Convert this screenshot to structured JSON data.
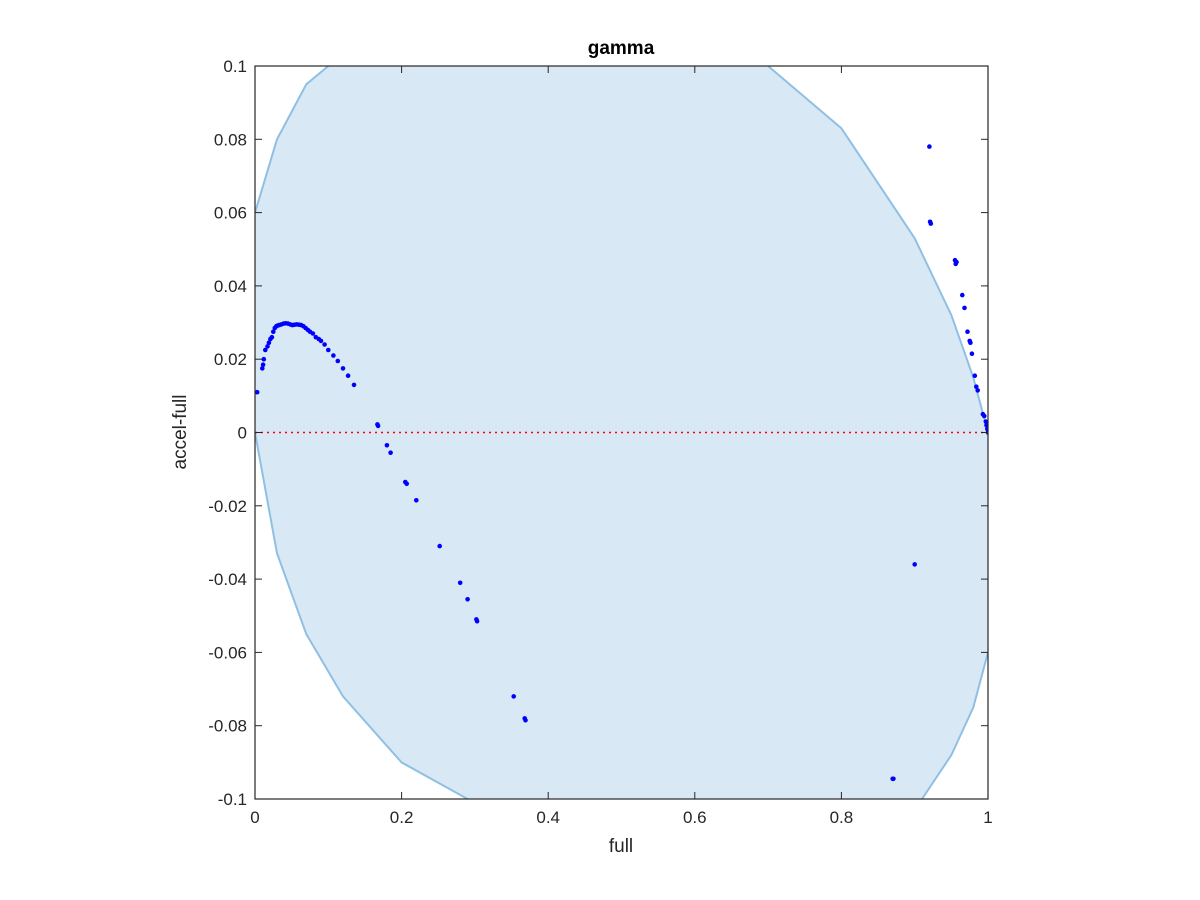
{
  "chart_data": {
    "type": "scatter",
    "title": "gamma",
    "xlabel": "full",
    "ylabel": "accel-full",
    "xlim": [
      0,
      1
    ],
    "ylim": [
      -0.1,
      0.1
    ],
    "x_ticks": [
      "0",
      "0.2",
      "0.4",
      "0.6",
      "0.8",
      "1"
    ],
    "y_ticks": [
      "-0.1",
      "-0.08",
      "-0.06",
      "-0.04",
      "-0.02",
      "0",
      "0.02",
      "0.04",
      "0.06",
      "0.08",
      "0.1"
    ],
    "grid": false,
    "region": {
      "fill_color": "#d9e8f5",
      "edge_color": "#8fc0e3",
      "upper_boundary": [
        [
          0,
          0.06
        ],
        [
          0.03,
          0.08
        ],
        [
          0.07,
          0.095
        ],
        [
          0.1,
          0.1
        ]
      ],
      "right_boundary": [
        [
          0.7,
          0.1
        ],
        [
          0.8,
          0.083
        ],
        [
          0.9,
          0.053
        ],
        [
          0.95,
          0.032
        ],
        [
          0.98,
          0.015
        ],
        [
          1,
          0
        ]
      ],
      "right_lower_boundary": [
        [
          1,
          -0.06
        ],
        [
          0.98,
          -0.075
        ],
        [
          0.95,
          -0.088
        ],
        [
          0.91,
          -0.1
        ]
      ],
      "left_lower_boundary": [
        [
          0.29,
          -0.1
        ],
        [
          0.2,
          -0.09
        ],
        [
          0.12,
          -0.072
        ],
        [
          0.07,
          -0.055
        ],
        [
          0.03,
          -0.033
        ],
        [
          0,
          0
        ]
      ]
    },
    "reference_line": {
      "y": 0,
      "color": "#ff0000",
      "style": "dotted"
    },
    "series": [
      {
        "color": "#0000ff",
        "x": [
          0.003,
          0.01,
          0.011,
          0.012,
          0.014,
          0.017,
          0.019,
          0.021,
          0.023,
          0.025,
          0.027,
          0.029,
          0.031,
          0.033,
          0.036,
          0.039,
          0.042,
          0.045,
          0.048,
          0.051,
          0.054,
          0.057,
          0.06,
          0.063,
          0.066,
          0.069,
          0.072,
          0.075,
          0.079,
          0.083,
          0.087,
          0.09,
          0.095,
          0.1,
          0.107,
          0.113,
          0.12,
          0.127,
          0.135,
          0.167,
          0.168,
          0.18,
          0.185,
          0.205,
          0.207,
          0.22,
          0.252,
          0.28,
          0.29,
          0.302,
          0.303,
          0.353,
          0.368,
          0.369,
          0.87,
          0.871,
          0.9,
          0.92,
          0.921,
          0.922,
          0.955,
          0.956,
          0.957,
          0.965,
          0.968,
          0.972,
          0.975,
          0.976,
          0.978,
          0.982,
          0.984,
          0.986,
          0.993,
          0.995,
          0.997,
          0.998,
          0.999,
          1.0,
          1.0
        ],
        "y": [
          0.011,
          0.0175,
          0.0185,
          0.02,
          0.0225,
          0.0235,
          0.0245,
          0.0255,
          0.026,
          0.0275,
          0.0285,
          0.029,
          0.0292,
          0.0293,
          0.0295,
          0.0297,
          0.0298,
          0.0297,
          0.0295,
          0.0293,
          0.0294,
          0.0295,
          0.0294,
          0.0293,
          0.029,
          0.0285,
          0.028,
          0.0275,
          0.027,
          0.026,
          0.0255,
          0.025,
          0.024,
          0.0225,
          0.021,
          0.0195,
          0.0175,
          0.0155,
          0.013,
          0.0022,
          0.0018,
          -0.0035,
          -0.0055,
          -0.0135,
          -0.014,
          -0.0185,
          -0.031,
          -0.041,
          -0.0455,
          -0.051,
          -0.0515,
          -0.072,
          -0.078,
          -0.0785,
          -0.0945,
          -0.0945,
          -0.036,
          0.078,
          0.0575,
          0.057,
          0.047,
          0.046,
          0.0465,
          0.0375,
          0.034,
          0.0275,
          0.025,
          0.0245,
          0.0215,
          0.0155,
          0.0125,
          0.0115,
          0.005,
          0.0045,
          0.003,
          0.002,
          0.001,
          0.0005,
          0.0
        ]
      }
    ]
  }
}
